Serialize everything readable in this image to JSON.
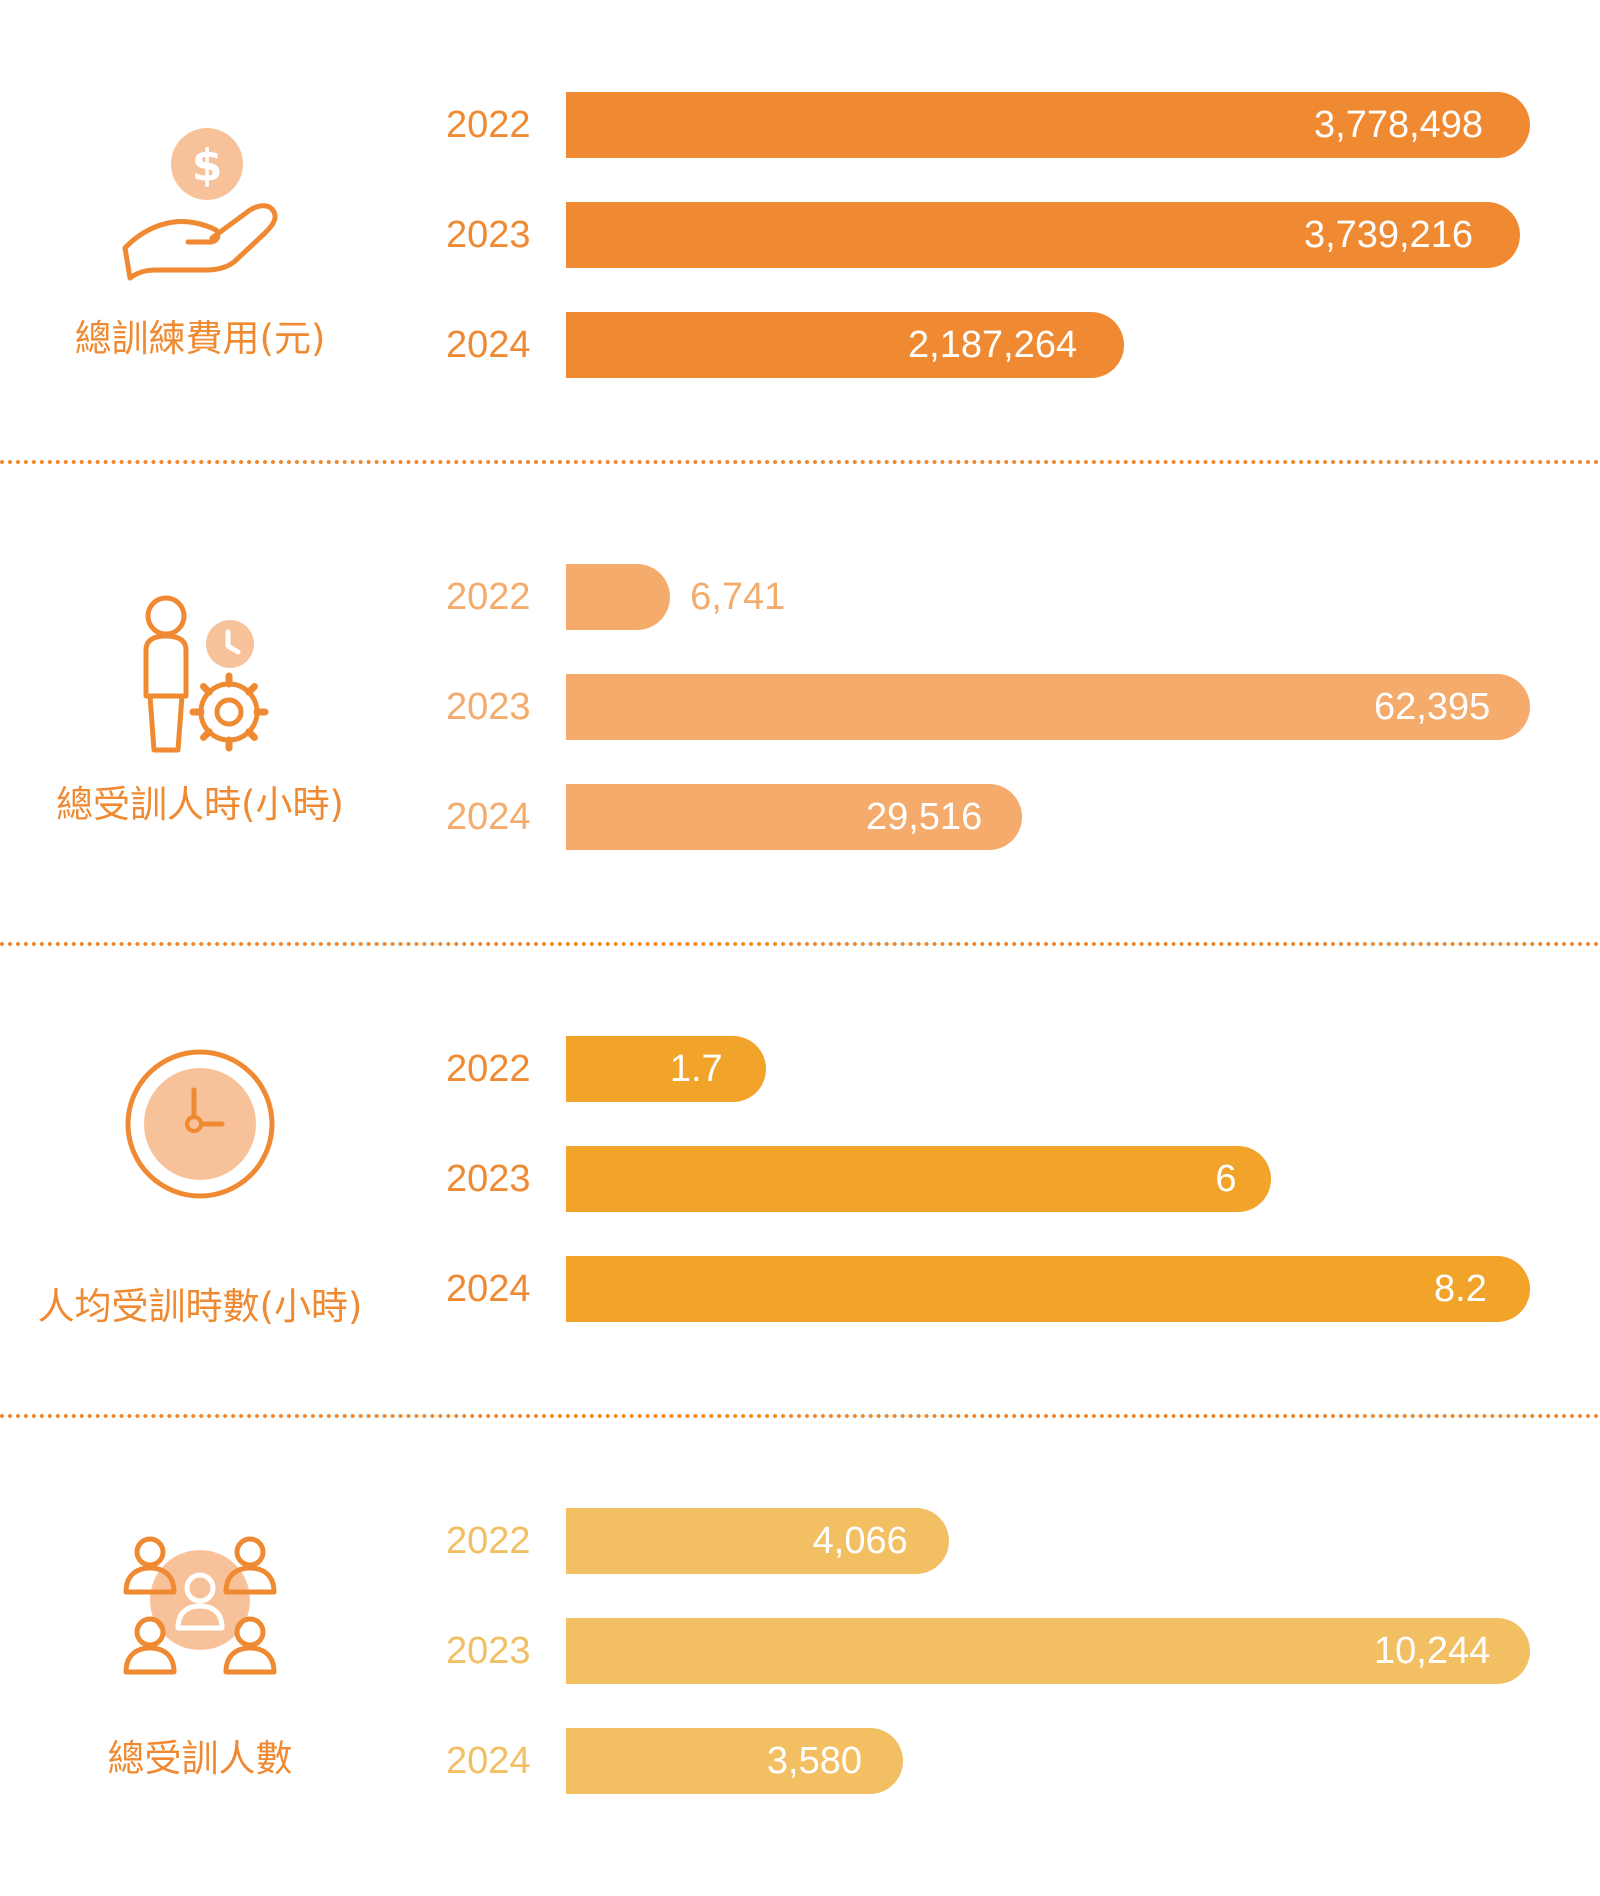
{
  "chart_data": [
    {
      "type": "bar",
      "orientation": "horizontal",
      "label": "總訓練費用(元)",
      "icon": "hand-holding-coin-icon",
      "color": "#ef8a32",
      "label_color": "#ef8a32",
      "year_color": "#ef8a32",
      "categories": [
        "2022",
        "2023",
        "2024"
      ],
      "values": [
        3778498,
        3739216,
        2187264
      ],
      "value_labels": [
        "3,778,498",
        "3,739,216",
        "2,187,264"
      ]
    },
    {
      "type": "bar",
      "orientation": "horizontal",
      "label": "總受訓人時(小時)",
      "icon": "person-clock-gear-icon",
      "color": "#f4ab6b",
      "label_color": "#ef8a32",
      "year_color": "#f4ab6b",
      "categories": [
        "2022",
        "2023",
        "2024"
      ],
      "values": [
        6741,
        62395,
        29516
      ],
      "value_labels": [
        "6,741",
        "62,395",
        "29,516"
      ]
    },
    {
      "type": "bar",
      "orientation": "horizontal",
      "label": "人均受訓時數(小時)",
      "icon": "clock-icon",
      "color": "#f2a329",
      "label_color": "#ef8a32",
      "year_color": "#ef8a32",
      "categories": [
        "2022",
        "2023",
        "2024"
      ],
      "values": [
        1.7,
        6,
        8.2
      ],
      "value_labels": [
        "1.7",
        "6",
        "8.2"
      ]
    },
    {
      "type": "bar",
      "orientation": "horizontal",
      "label": "總受訓人數",
      "icon": "people-group-icon",
      "color": "#f3bf63",
      "label_color": "#ef8a32",
      "year_color": "#f3bf63",
      "categories": [
        "2022",
        "2023",
        "2024"
      ],
      "values": [
        4066,
        10244,
        3580
      ],
      "value_labels": [
        "4,066",
        "10,244",
        "3,580"
      ]
    }
  ]
}
